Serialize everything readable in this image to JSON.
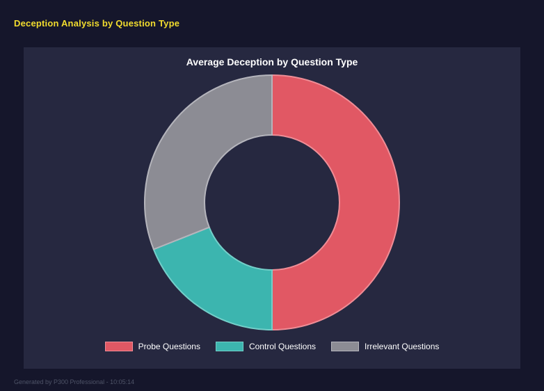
{
  "page": {
    "title": "Deception Analysis by Question Type",
    "footer": "Generated by P300 Professional - 10:05:14"
  },
  "theme": {
    "page_bg": "#15162b",
    "panel_bg": "#262840",
    "accent_yellow": "#f2dc2e",
    "text_white": "#ffffff",
    "footer_gray": "#4e5367"
  },
  "chart_data": {
    "type": "pie",
    "subtype": "donut",
    "title": "Average Deception by Question Type",
    "categories": [
      "Probe Questions",
      "Control Questions",
      "Irrelevant Questions"
    ],
    "values": [
      50,
      19,
      31
    ],
    "unit": "percent",
    "colors": [
      "#e15864",
      "#3cb5af",
      "#8c8c94"
    ],
    "border_colors": [
      "#ef8d96",
      "#74cfc9",
      "#b5b5bc"
    ],
    "start_angle_deg": 0,
    "direction": "clockwise",
    "inner_radius_ratio": 0.53,
    "legend_position": "bottom"
  }
}
